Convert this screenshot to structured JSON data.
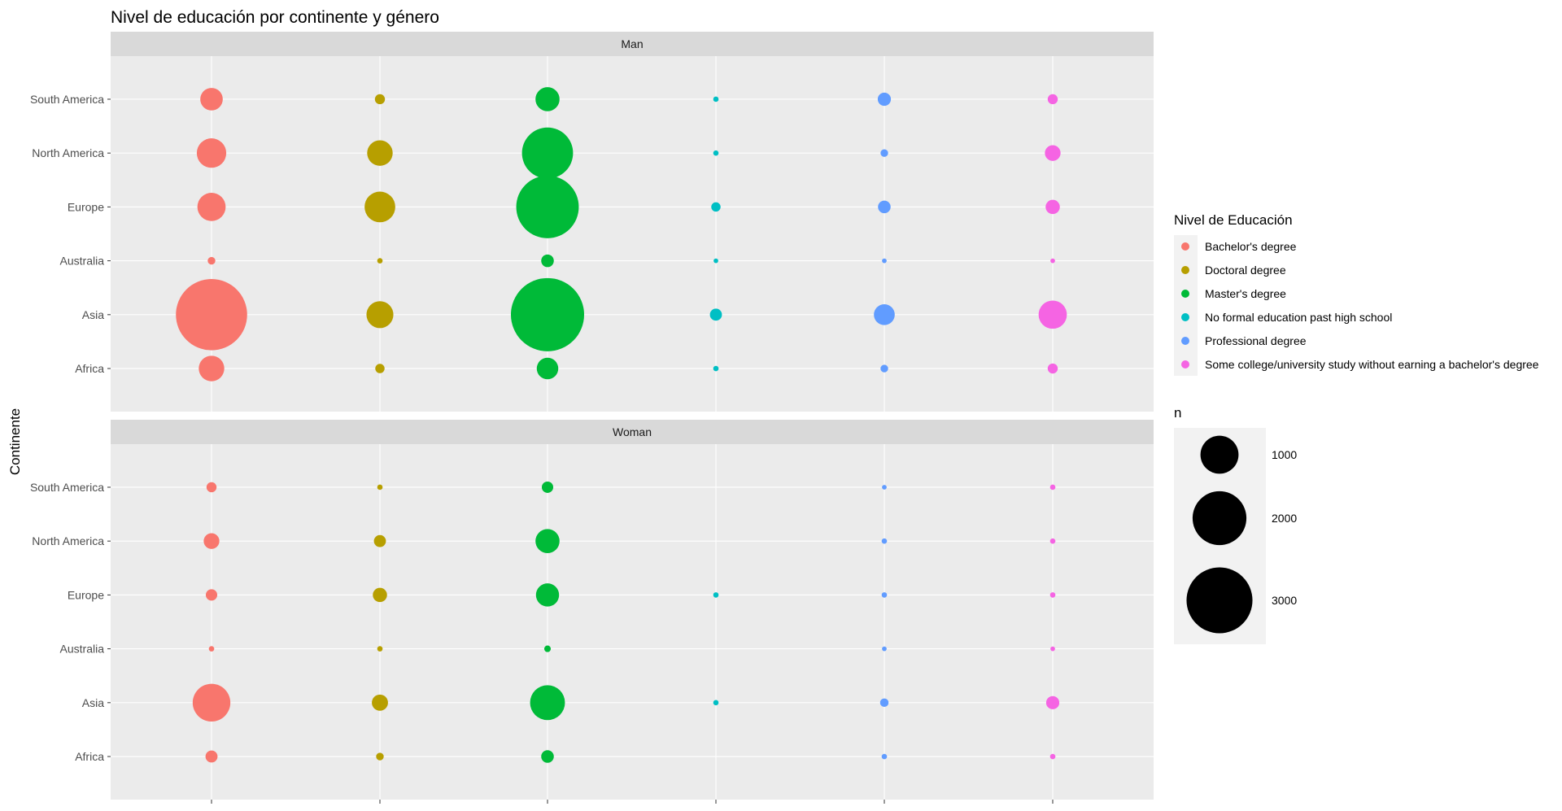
{
  "chart_data": {
    "type": "scatter",
    "title": "Nivel de educación por continente y género",
    "xlabel": "",
    "ylabel": "Continente",
    "continents": [
      "Africa",
      "Asia",
      "Australia",
      "Europe",
      "North America",
      "South America"
    ],
    "categories": [
      "Bachelor's degree",
      "Doctoral degree",
      "Master's degree",
      "No formal education past high school",
      "Professional degree",
      "Some college/university study without earning a bachelor's degree"
    ],
    "colors": [
      "#F8766D",
      "#B79F00",
      "#00BA38",
      "#00BFC4",
      "#619CFF",
      "#F564E3"
    ],
    "panels": [
      {
        "label": "Man",
        "series": [
          {
            "name": "Bachelor's degree",
            "values": [
              450,
              3500,
              40,
              550,
              600,
              350
            ]
          },
          {
            "name": "Doctoral degree",
            "values": [
              60,
              500,
              20,
              650,
              450,
              70
            ]
          },
          {
            "name": "Master's degree",
            "values": [
              320,
              3700,
              110,
              2700,
              1800,
              400
            ]
          },
          {
            "name": "No formal education past high school",
            "values": [
              20,
              100,
              15,
              60,
              20,
              20
            ]
          },
          {
            "name": "Professional degree",
            "values": [
              40,
              300,
              15,
              110,
              40,
              120
            ]
          },
          {
            "name": "Some college/university study without earning a bachelor's degree",
            "values": [
              70,
              550,
              15,
              140,
              170,
              70
            ]
          }
        ]
      },
      {
        "label": "Woman",
        "series": [
          {
            "name": "Bachelor's degree",
            "values": [
              100,
              980,
              20,
              90,
              170,
              70
            ]
          },
          {
            "name": "Doctoral degree",
            "values": [
              40,
              180,
              20,
              140,
              100,
              20
            ]
          },
          {
            "name": "Master's degree",
            "values": [
              110,
              840,
              30,
              370,
              400,
              90
            ]
          },
          {
            "name": "No formal education past high school",
            "values": [
              null,
              20,
              null,
              20,
              null,
              null
            ]
          },
          {
            "name": "Professional degree",
            "values": [
              20,
              50,
              15,
              20,
              20,
              15
            ]
          },
          {
            "name": "Some college/university study without earning a bachelor's degree",
            "values": [
              20,
              120,
              15,
              20,
              20,
              20
            ]
          }
        ]
      }
    ],
    "size_legend": {
      "title": "n",
      "breaks": [
        1000,
        2000,
        3000
      ]
    },
    "color_legend_title": "Nivel de Educación",
    "max_n": 3700,
    "grid": true
  }
}
